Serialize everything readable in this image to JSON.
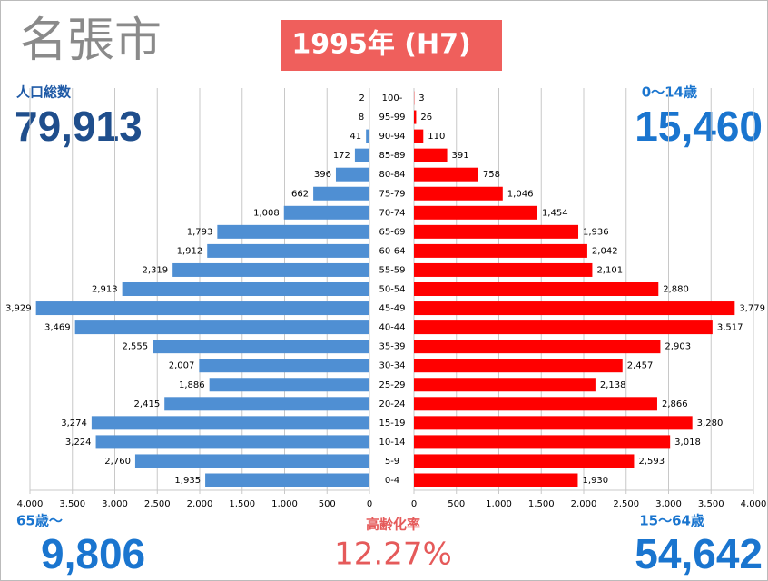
{
  "chart_data": {
    "type": "pyramid",
    "title": "名張市",
    "subtitle": "1995年 (H7)",
    "categories": [
      "0-4",
      "5-9",
      "10-14",
      "15-19",
      "20-24",
      "25-29",
      "30-34",
      "35-39",
      "40-44",
      "45-49",
      "50-54",
      "55-59",
      "60-64",
      "65-69",
      "70-74",
      "75-79",
      "80-84",
      "85-89",
      "90-94",
      "95-99",
      "100-"
    ],
    "series": [
      {
        "color": "#4f8fd3",
        "values": [
          1935,
          2760,
          3224,
          3274,
          2415,
          1886,
          2007,
          2555,
          3469,
          3929,
          2913,
          2319,
          1912,
          1793,
          1008,
          662,
          396,
          172,
          41,
          8,
          2
        ],
        "value_labels": [
          "1,935",
          "2,760",
          "3,224",
          "3,274",
          "2,415",
          "1,886",
          "2,007",
          "2,555",
          "3,469",
          "3,929",
          "2,913",
          "2,319",
          "1,912",
          "1,793",
          "1,008",
          "662",
          "396",
          "172",
          "41",
          "8",
          "2"
        ]
      },
      {
        "color": "#ff0000",
        "axis": "x2",
        "values": [
          1930,
          2593,
          3018,
          3280,
          2866,
          2138,
          2457,
          2903,
          3517,
          3779,
          2880,
          2101,
          2042,
          1936,
          1454,
          1046,
          758,
          391,
          110,
          26,
          3
        ],
        "value_labels": [
          "1,930",
          "2,593",
          "3,018",
          "3,280",
          "2,866",
          "2,138",
          "2,457",
          "2,903",
          "3,517",
          "3,779",
          "2,880",
          "2,101",
          "2,042",
          "1,936",
          "1,454",
          "1,046",
          "758",
          "391",
          "110",
          "26",
          "3"
        ]
      }
    ],
    "xlim": [
      4000,
      0
    ],
    "xticks": [
      {
        "value": 4000,
        "label": "4,000"
      },
      {
        "value": 3500,
        "label": "3,500"
      },
      {
        "value": 3000,
        "label": "3,000"
      },
      {
        "value": 2500,
        "label": "2,500"
      },
      {
        "value": 2000,
        "label": "2,000"
      },
      {
        "value": 1500,
        "label": "1,500"
      },
      {
        "value": 1000,
        "label": "1,000"
      },
      500,
      0
    ],
    "x2lim": [
      0,
      4000
    ],
    "x2ticks": [
      0,
      500,
      {
        "value": 1000,
        "label": "1,000"
      },
      {
        "value": 1500,
        "label": "1,500"
      },
      {
        "value": 2000,
        "label": "2,000"
      },
      {
        "value": 2500,
        "label": "2,500"
      },
      {
        "value": 3000,
        "label": "3,000"
      },
      {
        "value": 3500,
        "label": "3,500"
      },
      {
        "value": 4000,
        "label": "4,000"
      }
    ],
    "grid": true,
    "stats": {
      "total": {
        "label": "人口総数",
        "value": "79,913"
      },
      "young": {
        "label": "0〜14歳",
        "value": "15,460"
      },
      "elderly": {
        "label": "65歳〜",
        "value": "9,806"
      },
      "aging_rate": {
        "label": "高齢化率",
        "value": "12.27%"
      },
      "working": {
        "label": "15〜64歳",
        "value": "54,642"
      }
    }
  }
}
